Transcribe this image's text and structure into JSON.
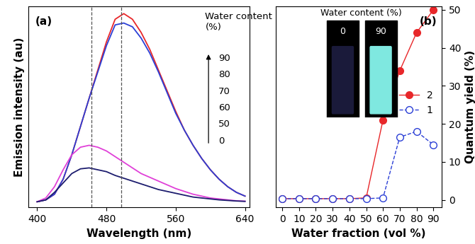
{
  "chart_data": [
    {
      "type": "line",
      "panel_label": "(a)",
      "x_label": "Wavelength (nm)",
      "y_label": "Emission intensity (au)",
      "x": [
        400,
        410,
        420,
        430,
        440,
        450,
        460,
        470,
        480,
        490,
        500,
        510,
        520,
        530,
        540,
        550,
        560,
        570,
        580,
        590,
        600,
        610,
        620,
        630,
        640
      ],
      "series": [
        {
          "name": "90",
          "color": "#e8272a",
          "values": [
            0,
            1,
            4,
            12,
            25,
            40,
            55,
            70,
            85,
            97,
            100,
            97,
            90,
            81,
            70,
            59,
            48,
            38,
            30,
            23,
            17,
            12,
            8,
            5,
            3
          ]
        },
        {
          "name": "80",
          "color": "#2b3fd6",
          "values": [
            0,
            1,
            4,
            12,
            25,
            40,
            55,
            69,
            83,
            94,
            95,
            93,
            87,
            79,
            69,
            58,
            47,
            38,
            30,
            23,
            17,
            12,
            8,
            5,
            3
          ]
        },
        {
          "name": "70",
          "color": "#e040d8",
          "values": [
            0,
            2,
            8,
            17,
            25,
            29,
            30,
            29,
            27,
            24,
            21,
            18,
            15,
            13,
            11,
            9,
            7,
            5.5,
            4,
            3,
            2,
            1.5,
            1,
            0.5,
            0.3
          ]
        },
        {
          "name": "60",
          "color": "#1c1c6e",
          "values": [
            0,
            1,
            5,
            10,
            15,
            17.5,
            18,
            17,
            16,
            14,
            12.5,
            11,
            9.5,
            8,
            6.5,
            5.5,
            4.5,
            3.5,
            2.5,
            2,
            1.5,
            1,
            0.7,
            0.4,
            0.2
          ]
        }
      ],
      "reference_lines": [
        463,
        497
      ],
      "annotation": {
        "title": "Water content\n(%)",
        "levels": [
          90,
          80,
          70,
          60,
          50,
          0
        ]
      },
      "xlim": [
        390,
        645
      ],
      "xticks": [
        400,
        480,
        560,
        640
      ],
      "ylim": [
        -3,
        104
      ],
      "tick_labels": "x"
    },
    {
      "type": "line",
      "panel_label": "(b)",
      "x_label": "Water fraction (vol %)",
      "y_label": "Quantum yield (%)",
      "x": [
        0,
        10,
        20,
        30,
        40,
        50,
        60,
        70,
        80,
        90
      ],
      "series": [
        {
          "name": "2",
          "color": "#e8272a",
          "marker": "circle",
          "line_style": "solid",
          "values": [
            0.3,
            0.3,
            0.3,
            0.3,
            0.3,
            0.5,
            21,
            34,
            44,
            50
          ]
        },
        {
          "name": "1",
          "color": "#2b3fd6",
          "marker": "ring",
          "line_style": "dashed",
          "values": [
            0.3,
            0.3,
            0.3,
            0.3,
            0.3,
            0.3,
            0.5,
            16.5,
            18,
            14.5
          ]
        }
      ],
      "legend": "center right",
      "inset": {
        "title": "Water content (%)",
        "labels": [
          "0",
          "90"
        ],
        "colors": [
          "#1a1a3a",
          "#7fe8e0"
        ]
      },
      "xlim": [
        -4,
        95
      ],
      "xticks": [
        0,
        10,
        20,
        30,
        40,
        50,
        60,
        70,
        80,
        90
      ],
      "ylim": [
        -2,
        51
      ],
      "yticks": [
        0,
        10,
        20,
        30,
        40,
        50
      ]
    }
  ]
}
